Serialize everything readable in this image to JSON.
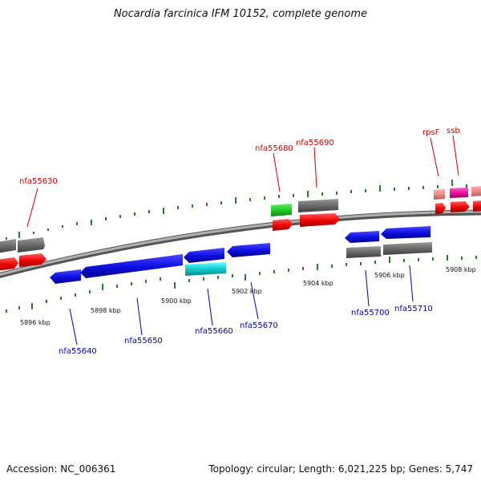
{
  "title": "Nocardia farcinica IFM 10152, complete genome",
  "footer": {
    "accession": "Accession: NC_006361",
    "topology": "Topology: circular; Length: 6,021,225 bp; Genes: 5,747"
  },
  "kbp_labels": [
    "5896 kbp",
    "5898 kbp",
    "5900 kbp",
    "5902 kbp",
    "5904 kbp",
    "5906 kbp",
    "5908 kbp"
  ],
  "gene_labels": [
    {
      "text": "nfa55630",
      "strand": "forward"
    },
    {
      "text": "nfa55680",
      "strand": "forward"
    },
    {
      "text": "nfa55690",
      "strand": "forward"
    },
    {
      "text": "rpsF",
      "strand": "forward"
    },
    {
      "text": "ssb",
      "strand": "forward"
    },
    {
      "text": "nfa55640",
      "strand": "reverse"
    },
    {
      "text": "nfa55650",
      "strand": "reverse"
    },
    {
      "text": "nfa55660",
      "strand": "reverse"
    },
    {
      "text": "nfa55670",
      "strand": "reverse"
    },
    {
      "text": "nfa55700",
      "strand": "reverse"
    },
    {
      "text": "nfa55710",
      "strand": "reverse"
    }
  ],
  "colors": {
    "forward_label": "#cc0000",
    "reverse_label": "#0000aa",
    "tick": "#2a7a2a",
    "backbone": "#888888"
  }
}
